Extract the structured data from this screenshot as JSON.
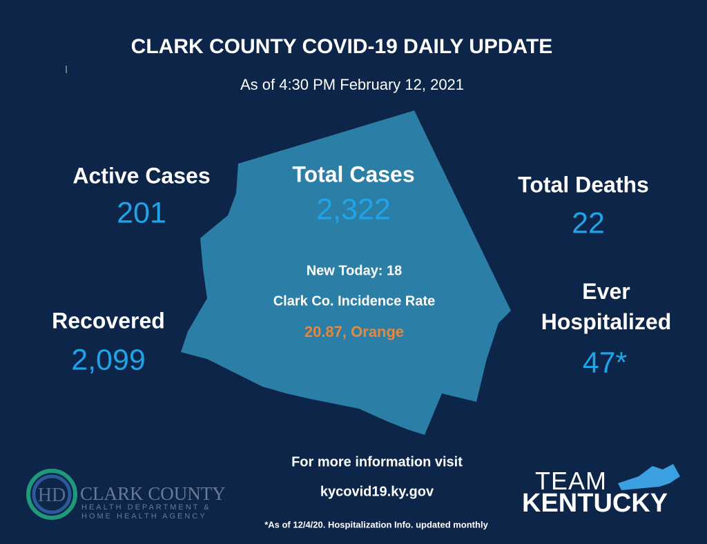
{
  "header": {
    "title": "CLARK COUNTY COVID-19 DAILY UPDATE",
    "subtitle": "As of 4:30 PM February 12, 2021"
  },
  "stats": [
    {
      "label": "Active Cases",
      "value": "201"
    },
    {
      "label": "Total Cases",
      "value": "2,322"
    },
    {
      "label": "Total Deaths",
      "value": "22"
    },
    {
      "label": "Recovered",
      "value": "2,099"
    },
    {
      "label": "Ever Hospitalized",
      "value": "47*"
    }
  ],
  "center": {
    "new_today": "New Today: 18",
    "incidence_label": "Clark Co. Incidence Rate",
    "incidence_value": "20.87, Orange"
  },
  "footer": {
    "info": "For more information visit",
    "url": "kycovid19.ky.gov",
    "note": "*As of 12/4/20. Hospitalization Info. updated monthly"
  },
  "logos": {
    "health_dept": {
      "name": "CLARK COUNTY",
      "line2": "HEALTH DEPARTMENT &",
      "line3": "HOME HEALTH AGENCY"
    },
    "team": {
      "top": "TEAM",
      "bottom": "KENTUCKY"
    }
  }
}
